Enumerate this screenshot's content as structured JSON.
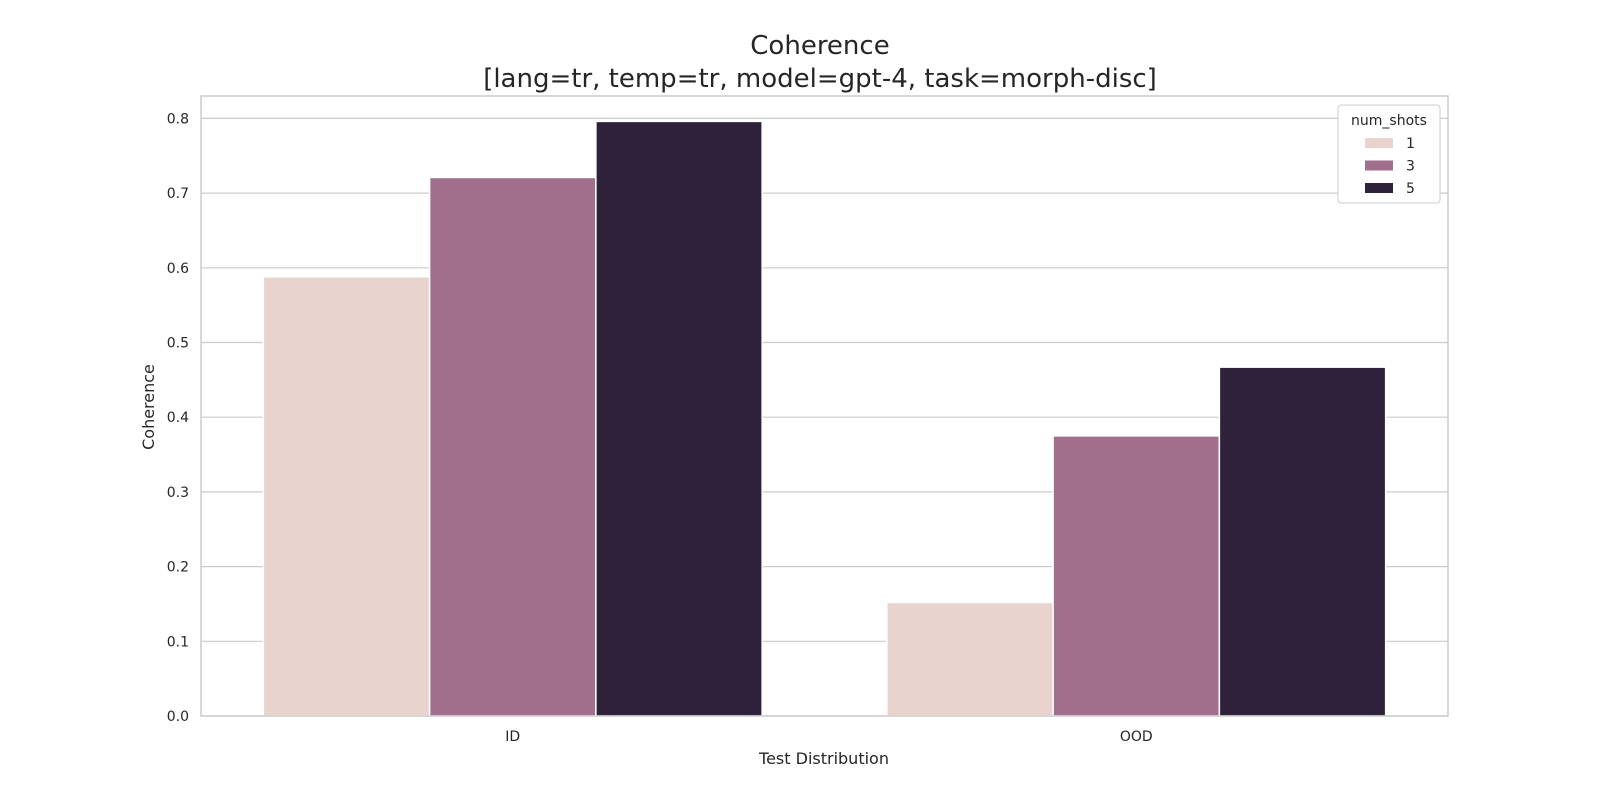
{
  "chart_data": {
    "type": "bar",
    "title_line1": "Coherence",
    "title_line2": "[lang=tr, temp=tr, model=gpt-4, task=morph-disc]",
    "xlabel": "Test Distribution",
    "ylabel": "Coherence",
    "categories": [
      "ID",
      "OOD"
    ],
    "ylim": [
      0,
      0.83
    ],
    "yticks": [
      "0.0",
      "0.1",
      "0.2",
      "0.3",
      "0.4",
      "0.5",
      "0.6",
      "0.7",
      "0.8"
    ],
    "grid": true,
    "legend": {
      "title": "num_shots",
      "placement": "top-right"
    },
    "series": [
      {
        "name": "1",
        "color": "#e8d3cf",
        "values": [
          0.588,
          0.152
        ]
      },
      {
        "name": "3",
        "color": "#a06f8c",
        "values": [
          0.721,
          0.375
        ]
      },
      {
        "name": "5",
        "color": "#2f213a",
        "values": [
          0.796,
          0.467
        ]
      }
    ]
  }
}
